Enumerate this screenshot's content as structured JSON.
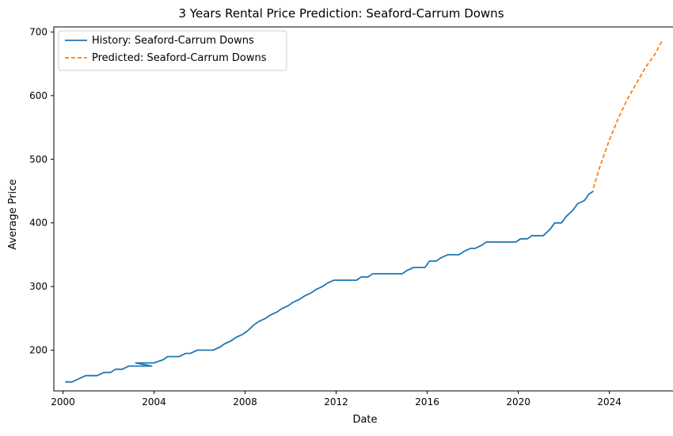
{
  "chart_data": {
    "type": "line",
    "title": "3 Years Rental Price Prediction: Seaford-Carrum Downs",
    "xlabel": "Date",
    "ylabel": "Average Price",
    "xlim": [
      1999.6,
      2026.9
    ],
    "ylim": [
      136,
      708
    ],
    "x_ticks": [
      2000,
      2004,
      2008,
      2012,
      2016,
      2020,
      2024
    ],
    "y_ticks": [
      200,
      300,
      400,
      500,
      600,
      700
    ],
    "grid": false,
    "legend_position": "upper-left",
    "series": [
      {
        "name": "History: Seaford-Carrum Downs",
        "color": "#1f77b4",
        "style": "solid",
        "x": [
          2000.1,
          2000.4,
          2001.0,
          2001.5,
          2001.8,
          2002.1,
          2002.3,
          2002.6,
          2002.9,
          2003.2,
          2003.9,
          2003.2,
          2003.7,
          2004.0,
          2004.4,
          2004.6,
          2004.9,
          2005.1,
          2005.4,
          2005.6,
          2005.9,
          2006.1,
          2006.4,
          2006.6,
          2006.9,
          2007.1,
          2007.4,
          2007.6,
          2007.9,
          2008.1,
          2008.4,
          2008.6,
          2008.9,
          2009.1,
          2009.4,
          2009.6,
          2009.9,
          2010.1,
          2010.4,
          2010.6,
          2010.9,
          2011.1,
          2011.4,
          2011.6,
          2011.9,
          2012.1,
          2012.4,
          2012.6,
          2012.9,
          2013.1,
          2013.4,
          2013.6,
          2013.9,
          2014.1,
          2014.4,
          2014.6,
          2014.9,
          2015.1,
          2015.4,
          2015.6,
          2015.9,
          2016.1,
          2016.4,
          2016.6,
          2016.9,
          2017.1,
          2017.4,
          2017.6,
          2017.9,
          2018.1,
          2018.4,
          2018.6,
          2018.9,
          2019.1,
          2019.4,
          2019.6,
          2019.9,
          2020.1,
          2020.4,
          2020.6,
          2020.9,
          2021.1,
          2021.4,
          2021.6,
          2021.9,
          2022.1,
          2022.4,
          2022.6,
          2022.9,
          2023.1,
          2023.3
        ],
        "y": [
          150,
          150,
          160,
          160,
          165,
          165,
          170,
          170,
          175,
          175,
          175,
          180,
          180,
          180,
          185,
          190,
          190,
          190,
          195,
          195,
          200,
          200,
          200,
          200,
          205,
          210,
          215,
          220,
          225,
          230,
          240,
          245,
          250,
          255,
          260,
          265,
          270,
          275,
          280,
          285,
          290,
          295,
          300,
          305,
          310,
          310,
          310,
          310,
          310,
          315,
          315,
          320,
          320,
          320,
          320,
          320,
          320,
          325,
          330,
          330,
          330,
          340,
          340,
          345,
          350,
          350,
          350,
          355,
          360,
          360,
          365,
          370,
          370,
          370,
          370,
          370,
          370,
          375,
          375,
          380,
          380,
          380,
          390,
          400,
          400,
          410,
          420,
          430,
          435,
          445,
          450
        ]
      },
      {
        "name": "Predicted: Seaford-Carrum Downs",
        "color": "#ff7f0e",
        "style": "dashed",
        "x": [
          2023.3,
          2023.6,
          2024.0,
          2024.4,
          2024.8,
          2025.2,
          2025.6,
          2026.0,
          2026.3
        ],
        "y": [
          455,
          490,
          530,
          565,
          595,
          620,
          645,
          665,
          685
        ]
      }
    ]
  }
}
